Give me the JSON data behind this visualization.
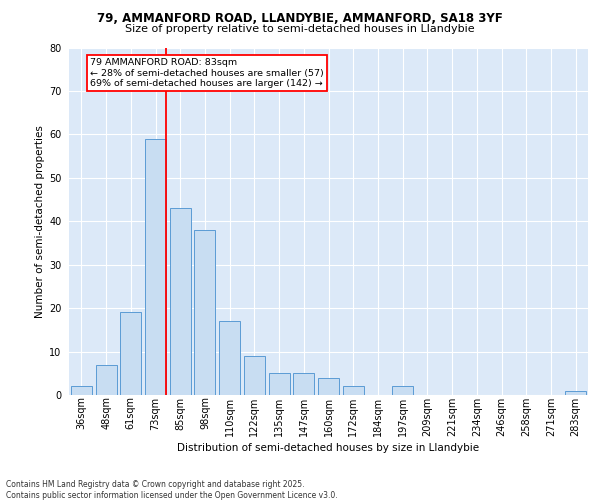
{
  "title_line1": "79, AMMANFORD ROAD, LLANDYBIE, AMMANFORD, SA18 3YF",
  "title_line2": "Size of property relative to semi-detached houses in Llandybie",
  "xlabel": "Distribution of semi-detached houses by size in Llandybie",
  "ylabel": "Number of semi-detached properties",
  "footer_line1": "Contains HM Land Registry data © Crown copyright and database right 2025.",
  "footer_line2": "Contains public sector information licensed under the Open Government Licence v3.0.",
  "annotation_title": "79 AMMANFORD ROAD: 83sqm",
  "annotation_line1": "← 28% of semi-detached houses are smaller (57)",
  "annotation_line2": "69% of semi-detached houses are larger (142) →",
  "categories": [
    "36sqm",
    "48sqm",
    "61sqm",
    "73sqm",
    "85sqm",
    "98sqm",
    "110sqm",
    "122sqm",
    "135sqm",
    "147sqm",
    "160sqm",
    "172sqm",
    "184sqm",
    "197sqm",
    "209sqm",
    "221sqm",
    "234sqm",
    "246sqm",
    "258sqm",
    "271sqm",
    "283sqm"
  ],
  "values": [
    2,
    7,
    19,
    59,
    43,
    38,
    17,
    9,
    5,
    5,
    4,
    2,
    0,
    2,
    0,
    0,
    0,
    0,
    0,
    0,
    1
  ],
  "bar_color": "#c8ddf2",
  "bar_edge_color": "#5b9bd5",
  "vline_color": "#ff0000",
  "background_color": "#dce9f8",
  "grid_color": "#ffffff",
  "ylim_max": 80,
  "yticks": [
    0,
    10,
    20,
    30,
    40,
    50,
    60,
    70,
    80
  ],
  "vline_bar_index": 3,
  "title_fontsize": 8.5,
  "subtitle_fontsize": 8.0,
  "ylabel_fontsize": 7.5,
  "xlabel_fontsize": 7.5,
  "tick_fontsize": 7.0,
  "annot_fontsize": 6.8,
  "footer_fontsize": 5.5
}
